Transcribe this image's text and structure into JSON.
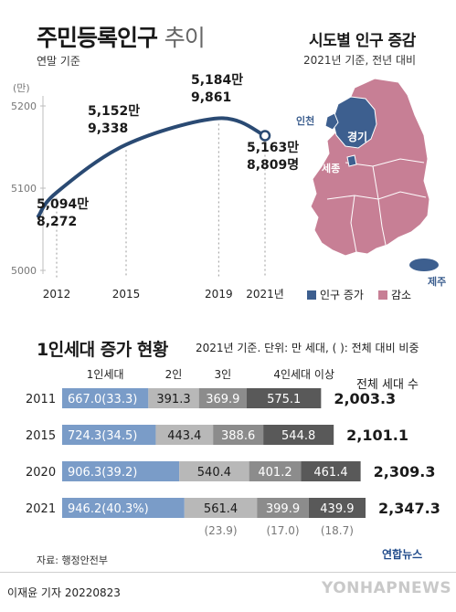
{
  "header": {
    "title_main": "주민등록인구",
    "title_light": "추이",
    "subtitle": "연말 기준"
  },
  "map": {
    "title": "시도별 인구 증감",
    "subtitle": "2021년 기준, 전년 대비",
    "labels": {
      "incheon": "인천",
      "gyeonggi": "경기",
      "sejong": "세종",
      "jeju": "제주"
    },
    "legend": {
      "increase": "인구 증가",
      "decrease": "감소"
    },
    "colors": {
      "increase": "#3d5f8f",
      "decrease": "#c77f95"
    }
  },
  "chart_data": [
    {
      "type": "line",
      "title": "주민등록인구 추이",
      "subtitle": "연말 기준",
      "yunit": "(만)",
      "x": [
        2012,
        2015,
        2019,
        2021
      ],
      "xtick_labels": [
        "2012",
        "2015",
        "2019",
        "2021년"
      ],
      "yticks": [
        5000,
        5100,
        5200
      ],
      "ylim": [
        5000,
        5200
      ],
      "series": [
        {
          "values": [
            5094.8272,
            5152.9338,
            5184.9861,
            5163.8809
          ],
          "labels": [
            [
              "5,094만",
              "8,272"
            ],
            [
              "5,152만",
              "9,338"
            ],
            [
              "5,184만",
              "9,861"
            ],
            [
              "5,163만",
              "8,809명"
            ]
          ]
        }
      ],
      "line_color": "#2a4a73",
      "grid": "vertical"
    },
    {
      "type": "bar",
      "stacked": true,
      "orientation": "horizontal",
      "title": "1인세대 증가 현황",
      "note": "2021년 기준. 단위: 만 세대, ( ): 전체 대비 비중",
      "categories": [
        "2011",
        "2015",
        "2020",
        "2021"
      ],
      "series": [
        {
          "name": "1인세대",
          "values": [
            667.0,
            724.3,
            906.3,
            946.2
          ],
          "shares": [
            "(33.3)",
            "(34.5)",
            "(39.2)",
            "(40.3%)"
          ],
          "color": "#7a9cc8"
        },
        {
          "name": "2인",
          "values": [
            391.3,
            443.4,
            540.4,
            561.4
          ],
          "color": "#b8b8b8"
        },
        {
          "name": "3인",
          "values": [
            369.9,
            388.6,
            401.2,
            399.9
          ],
          "color": "#8c8c8c"
        },
        {
          "name": "4인세대 이상",
          "values": [
            575.1,
            544.8,
            461.4,
            439.9
          ],
          "color": "#595959"
        }
      ],
      "total_header": "전체 세대 수",
      "totals": [
        "2,003.3",
        "2,101.1",
        "2,309.3",
        "2,347.3"
      ],
      "shares_2021": [
        "(23.9)",
        "(17.0)",
        "(18.7)"
      ]
    }
  ],
  "footer": {
    "source": "자료: 행정안전부",
    "credit": "이재윤 기자  20220823",
    "brand": "연합뉴스",
    "watermark": "YONHAPNEWS"
  }
}
